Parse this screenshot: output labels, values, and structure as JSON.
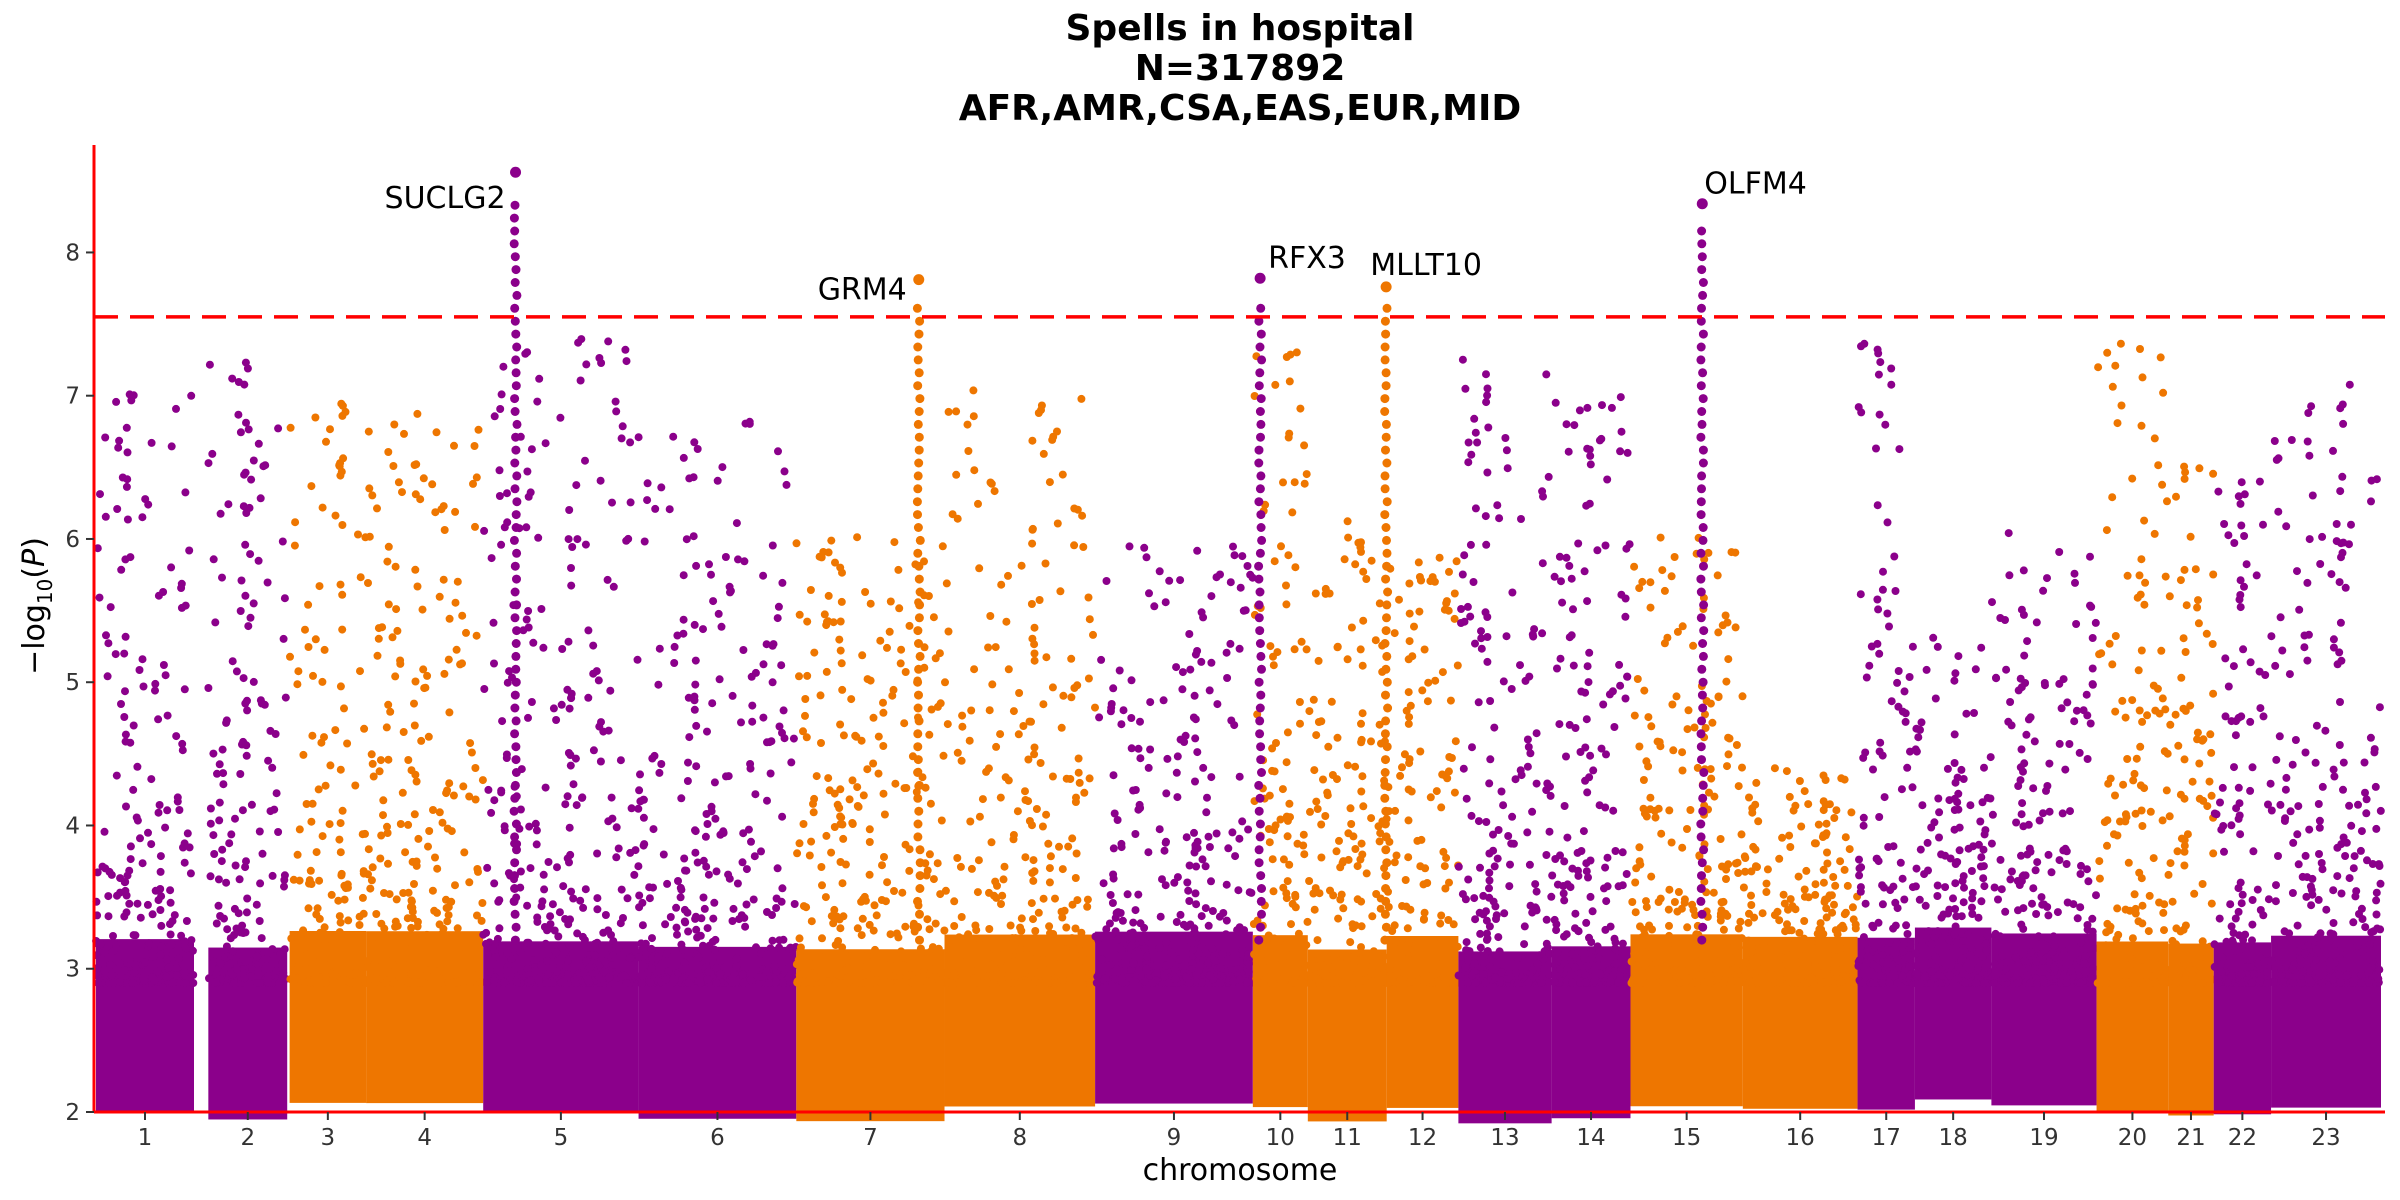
{
  "title": {
    "line1": "Spells in hospital",
    "line2": "N=317892",
    "line3": "AFR,AMR,CSA,EAS,EUR,MID"
  },
  "colors": {
    "odd": "#8B008B",
    "even": "#EE7600",
    "threshold": "#FF0000",
    "axis": "#FF0000"
  },
  "chart_data": {
    "type": "scatter",
    "subtype": "manhattan",
    "xlabel": "chromosome",
    "ylabel": "-log10(P)",
    "ylim": [
      2,
      8.75
    ],
    "yticks": [
      2,
      3,
      4,
      5,
      6,
      7,
      8
    ],
    "threshold": 7.55,
    "chromosomes": [
      {
        "label": "1",
        "start": 0.0,
        "end": 0.041,
        "peak": 7.02,
        "color": "odd"
      },
      {
        "label": "2",
        "start": 0.047,
        "end": 0.08,
        "peak": 7.27,
        "color": "odd"
      },
      {
        "label": "3",
        "start": 0.081,
        "end": 0.113,
        "peak": 6.97,
        "color": "even"
      },
      {
        "label": "4",
        "start": 0.113,
        "end": 0.162,
        "peak": 6.88,
        "color": "even"
      },
      {
        "label": "5",
        "start": 0.162,
        "end": 0.227,
        "peak": 8.56,
        "color": "odd"
      },
      {
        "label": "6",
        "start": 0.227,
        "end": 0.293,
        "peak": 6.82,
        "color": "odd"
      },
      {
        "label": "7",
        "start": 0.293,
        "end": 0.355,
        "peak": 6.02,
        "color": "even"
      },
      {
        "label": "8",
        "start": 0.355,
        "end": 0.418,
        "peak": 7.04,
        "color": "even"
      },
      {
        "label": "9",
        "start": 0.418,
        "end": 0.484,
        "peak": 5.95,
        "color": "odd"
      },
      {
        "label": "10",
        "start": 0.484,
        "end": 0.507,
        "peak": 7.81,
        "color": "even"
      },
      {
        "label": "11",
        "start": 0.507,
        "end": 0.54,
        "peak": 6.22,
        "color": "even"
      },
      {
        "label": "12",
        "start": 0.54,
        "end": 0.57,
        "peak": 5.92,
        "color": "even"
      },
      {
        "label": "13",
        "start": 0.57,
        "end": 0.609,
        "peak": 7.69,
        "color": "odd"
      },
      {
        "label": "14",
        "start": 0.609,
        "end": 0.642,
        "peak": 7.11,
        "color": "odd"
      },
      {
        "label": "15",
        "start": 0.642,
        "end": 0.689,
        "peak": 6.01,
        "color": "even"
      },
      {
        "label": "16",
        "start": 0.689,
        "end": 0.737,
        "peak": 4.42,
        "color": "even"
      },
      {
        "label": "17",
        "start": 0.737,
        "end": 0.761,
        "peak": 7.81,
        "color": "odd"
      },
      {
        "label": "18",
        "start": 0.761,
        "end": 0.793,
        "peak": 5.42,
        "color": "odd"
      },
      {
        "label": "19",
        "start": 0.793,
        "end": 0.837,
        "peak": 6.05,
        "color": "odd"
      },
      {
        "label": "20",
        "start": 0.837,
        "end": 0.867,
        "peak": 7.75,
        "color": "even"
      },
      {
        "label": "21",
        "start": 0.867,
        "end": 0.886,
        "peak": 6.58,
        "color": "even"
      },
      {
        "label": "22",
        "start": 0.886,
        "end": 0.91,
        "peak": 6.41,
        "color": "odd"
      },
      {
        "label": "23",
        "start": 0.91,
        "end": 0.956,
        "peak": 7.1,
        "color": "odd"
      }
    ],
    "hits": [
      {
        "gene": "SUCLG2",
        "x": 0.184,
        "y": 8.56,
        "color": "odd"
      },
      {
        "gene": "GRM4",
        "x": 0.36,
        "y": 7.81,
        "color": "even"
      },
      {
        "gene": "RFX3",
        "x": 0.509,
        "y": 7.82,
        "color": "odd"
      },
      {
        "gene": "MLLT10",
        "x": 0.564,
        "y": 7.76,
        "color": "even"
      },
      {
        "gene": "OLFM4",
        "x": 0.702,
        "y": 8.34,
        "color": "odd"
      }
    ]
  }
}
